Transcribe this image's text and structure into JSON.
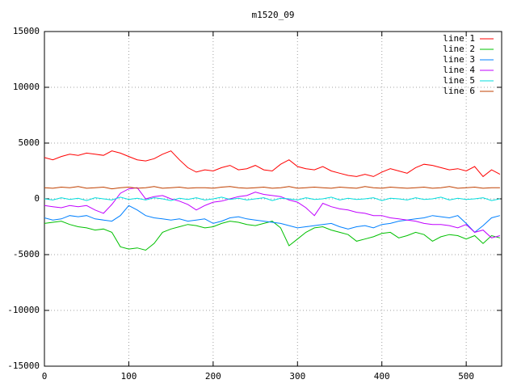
{
  "chart_data": {
    "type": "line",
    "title": "m1520_09",
    "x": [
      0,
      10,
      20,
      30,
      40,
      50,
      60,
      70,
      80,
      90,
      100,
      110,
      120,
      130,
      140,
      150,
      160,
      170,
      180,
      190,
      200,
      210,
      220,
      230,
      240,
      250,
      260,
      270,
      280,
      290,
      300,
      310,
      320,
      330,
      340,
      350,
      360,
      370,
      380,
      390,
      400,
      410,
      420,
      430,
      440,
      450,
      460,
      470,
      480,
      490,
      500,
      510,
      520,
      530,
      540
    ],
    "series": [
      {
        "name": "line 1",
        "color": "#ff0000",
        "values": [
          3700,
          3500,
          3800,
          4000,
          3900,
          4100,
          4000,
          3900,
          4300,
          4100,
          3800,
          3500,
          3400,
          3600,
          4000,
          4300,
          3500,
          2800,
          2400,
          2600,
          2500,
          2800,
          3000,
          2600,
          2700,
          3000,
          2600,
          2500,
          3100,
          3500,
          2900,
          2700,
          2600,
          2900,
          2500,
          2300,
          2100,
          2000,
          2200,
          2000,
          2400,
          2700,
          2500,
          2300,
          2800,
          3100,
          3000,
          2800,
          2600,
          2700,
          2500,
          2900,
          2000,
          2600,
          2200
        ]
      },
      {
        "name": "line 2",
        "color": "#00c000",
        "values": [
          -2200,
          -2100,
          -2000,
          -2300,
          -2500,
          -2600,
          -2800,
          -2700,
          -3000,
          -4300,
          -4500,
          -4400,
          -4600,
          -4000,
          -3000,
          -2700,
          -2500,
          -2300,
          -2400,
          -2600,
          -2500,
          -2200,
          -2000,
          -2100,
          -2300,
          -2400,
          -2200,
          -2000,
          -2600,
          -4200,
          -3600,
          -3000,
          -2600,
          -2500,
          -2800,
          -3000,
          -3200,
          -3800,
          -3600,
          -3400,
          -3100,
          -3000,
          -3500,
          -3300,
          -3000,
          -3200,
          -3800,
          -3400,
          -3200,
          -3300,
          -3600,
          -3300,
          -4000,
          -3300,
          -3500
        ]
      },
      {
        "name": "line 3",
        "color": "#0080ff",
        "values": [
          -1700,
          -1900,
          -1800,
          -1500,
          -1600,
          -1500,
          -1800,
          -1900,
          -2000,
          -1500,
          -600,
          -1000,
          -1500,
          -1700,
          -1800,
          -1900,
          -1800,
          -2000,
          -1900,
          -1800,
          -2200,
          -2000,
          -1700,
          -1600,
          -1800,
          -1900,
          -2000,
          -2100,
          -2200,
          -2400,
          -2600,
          -2500,
          -2400,
          -2300,
          -2200,
          -2500,
          -2700,
          -2500,
          -2400,
          -2600,
          -2300,
          -2200,
          -2000,
          -1900,
          -1800,
          -1700,
          -1500,
          -1600,
          -1700,
          -1500,
          -2200,
          -3000,
          -2400,
          -1700,
          -1500
        ]
      },
      {
        "name": "line 4",
        "color": "#c000ff",
        "values": [
          -600,
          -700,
          -800,
          -600,
          -700,
          -600,
          -1000,
          -1300,
          -500,
          500,
          900,
          1000,
          0,
          200,
          300,
          0,
          -200,
          -500,
          -1000,
          -600,
          -300,
          -200,
          0,
          200,
          300,
          600,
          400,
          300,
          200,
          -100,
          -300,
          -800,
          -1500,
          -400,
          -700,
          -900,
          -1000,
          -1200,
          -1300,
          -1500,
          -1500,
          -1700,
          -1800,
          -1900,
          -2000,
          -2200,
          -2300,
          -2300,
          -2400,
          -2600,
          -2300,
          -3000,
          -2800,
          -3500,
          -3300
        ]
      },
      {
        "name": "line 5",
        "color": "#00dddd",
        "values": [
          0,
          -100,
          100,
          -50,
          50,
          -150,
          100,
          0,
          -100,
          150,
          -50,
          50,
          -100,
          100,
          0,
          -150,
          50,
          -50,
          100,
          -100,
          0,
          150,
          -50,
          50,
          -100,
          0,
          100,
          -150,
          50,
          0,
          -100,
          100,
          -50,
          0,
          150,
          -100,
          50,
          -50,
          0,
          100,
          -150,
          50,
          0,
          -100,
          100,
          -50,
          0,
          150,
          -100,
          50,
          -50,
          0,
          100,
          -150,
          0
        ]
      },
      {
        "name": "line 6",
        "color": "#c04000",
        "values": [
          1000,
          950,
          1050,
          1000,
          1100,
          950,
          1000,
          1050,
          900,
          1000,
          1050,
          950,
          1000,
          1100,
          950,
          1000,
          1050,
          950,
          1000,
          1000,
          950,
          1050,
          1100,
          1000,
          950,
          1000,
          1050,
          950,
          1000,
          1100,
          950,
          1000,
          1050,
          1000,
          950,
          1050,
          1000,
          950,
          1100,
          1000,
          950,
          1050,
          1000,
          950,
          1000,
          1050,
          950,
          1000,
          1100,
          950,
          1000,
          1050,
          950,
          1000,
          1000
        ]
      }
    ],
    "xlim": [
      0,
      542
    ],
    "ylim": [
      -15000,
      15000
    ],
    "xticks": [
      0,
      100,
      200,
      300,
      400,
      500
    ],
    "yticks": [
      -15000,
      -10000,
      -5000,
      0,
      5000,
      10000,
      15000
    ],
    "grid": true,
    "legend": "top-right"
  }
}
